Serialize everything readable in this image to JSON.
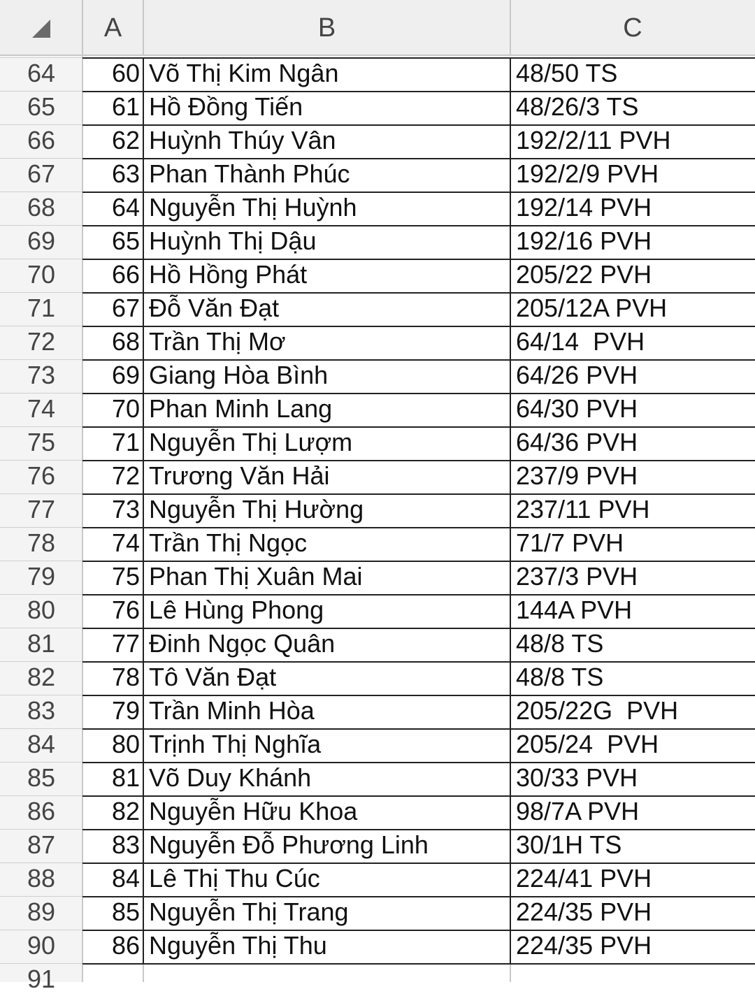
{
  "spreadsheet": {
    "columns": [
      "A",
      "B",
      "C"
    ],
    "rows": [
      [
        "64",
        "60",
        "Võ Thị Kim Ngân",
        "48/50 TS"
      ],
      [
        "65",
        "61",
        "Hồ Đồng Tiến",
        "48/26/3 TS"
      ],
      [
        "66",
        "62",
        "Huỳnh Thúy Vân",
        "192/2/11 PVH"
      ],
      [
        "67",
        "63",
        "Phan Thành Phúc",
        "192/2/9 PVH"
      ],
      [
        "68",
        "64",
        "Nguyễn Thị Huỳnh",
        "192/14 PVH"
      ],
      [
        "69",
        "65",
        "Huỳnh Thị Dậu",
        "192/16 PVH"
      ],
      [
        "70",
        "66",
        "Hồ Hồng Phát",
        "205/22 PVH"
      ],
      [
        "71",
        "67",
        "Đỗ Văn Đạt",
        "205/12A PVH"
      ],
      [
        "72",
        "68",
        "Trần Thị Mơ",
        "64/14  PVH"
      ],
      [
        "73",
        "69",
        "Giang Hòa Bình",
        "64/26 PVH"
      ],
      [
        "74",
        "70",
        "Phan Minh Lang",
        "64/30 PVH"
      ],
      [
        "75",
        "71",
        "Nguyễn Thị Lượm",
        "64/36 PVH"
      ],
      [
        "76",
        "72",
        "Trương Văn Hải",
        "237/9 PVH"
      ],
      [
        "77",
        "73",
        "Nguyễn Thị Hường",
        "237/11 PVH"
      ],
      [
        "78",
        "74",
        "Trần Thị Ngọc",
        "71/7 PVH"
      ],
      [
        "79",
        "75",
        "Phan Thị Xuân Mai",
        "237/3 PVH"
      ],
      [
        "80",
        "76",
        "Lê Hùng Phong",
        "144A PVH"
      ],
      [
        "81",
        "77",
        "Đinh Ngọc Quân",
        "48/8 TS"
      ],
      [
        "82",
        "78",
        "Tô Văn Đạt",
        "48/8 TS"
      ],
      [
        "83",
        "79",
        "Trần Minh Hòa",
        "205/22G  PVH"
      ],
      [
        "84",
        "80",
        "Trịnh Thị Nghĩa",
        "205/24  PVH"
      ],
      [
        "85",
        "81",
        "Võ Duy Khánh",
        "30/33 PVH"
      ],
      [
        "86",
        "82",
        "Nguyễn Hữu Khoa",
        "98/7A PVH"
      ],
      [
        "87",
        "83",
        "Nguyễn Đỗ Phương Linh",
        "30/1H TS"
      ],
      [
        "88",
        "84",
        "Lê Thị Thu Cúc",
        "224/41 PVH"
      ],
      [
        "89",
        "85",
        "Nguyễn Thị Trang",
        "224/35 PVH"
      ],
      [
        "90",
        "86",
        "Nguyễn Thị Thu",
        "224/35 PVH"
      ]
    ],
    "last_row_number": "91"
  }
}
